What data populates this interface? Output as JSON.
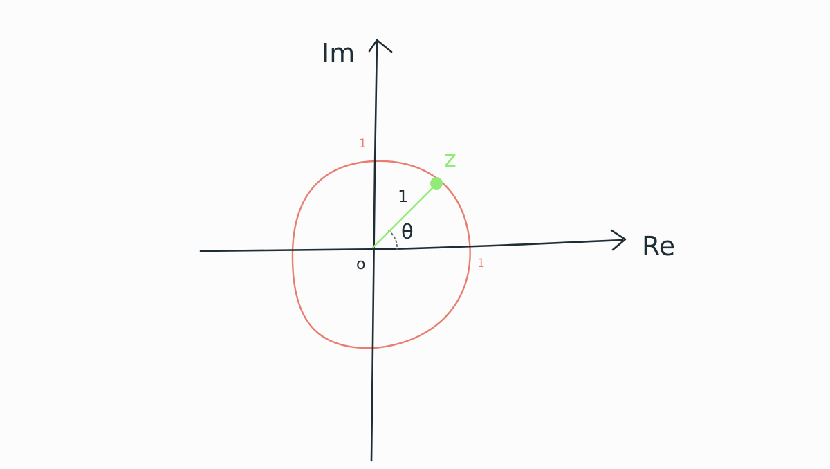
{
  "labels": {
    "imaginary_axis": "Im",
    "real_axis": "Re",
    "origin": "o",
    "real_one": "1",
    "imaginary_one": "1",
    "radius": "1",
    "angle": "θ",
    "point": "z"
  },
  "colors": {
    "background": "#fcfcfc",
    "axis": "#1f2d36",
    "unit_circle": "#e87e6f",
    "point": "#92eb78",
    "angle_arc": "#666f75"
  }
}
